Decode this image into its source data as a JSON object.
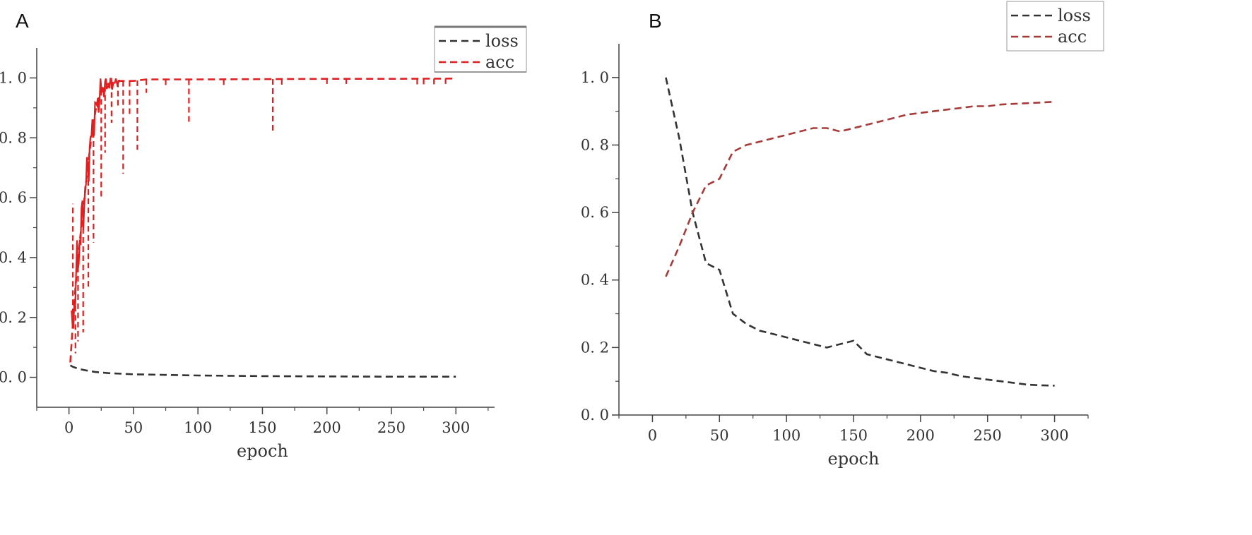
{
  "panels": {
    "a": {
      "label": "A"
    },
    "b": {
      "label": "B"
    }
  },
  "chart_data": [
    {
      "type": "line",
      "xlabel": "epoch",
      "ylabel": "",
      "xlim": [
        -25,
        330
      ],
      "ylim": [
        -0.1,
        1.1
      ],
      "xticks": [
        0,
        50,
        100,
        150,
        200,
        250,
        300
      ],
      "yticks": [
        0.0,
        0.2,
        0.4,
        0.6,
        0.8,
        1.0
      ],
      "legend_position": "top-right",
      "series": [
        {
          "name": "loss",
          "color": "#333333",
          "style": "dashed",
          "x": [
            1,
            3,
            5,
            8,
            12,
            20,
            30,
            50,
            100,
            150,
            200,
            250,
            300
          ],
          "values": [
            0.04,
            0.035,
            0.032,
            0.028,
            0.024,
            0.018,
            0.014,
            0.01,
            0.006,
            0.004,
            0.003,
            0.002,
            0.002
          ]
        },
        {
          "name": "acc",
          "color": "#e02020",
          "style": "dashed",
          "x": [
            1,
            3,
            5,
            7,
            9,
            11,
            13,
            15,
            17,
            19,
            21,
            23,
            25,
            27,
            30,
            35,
            40,
            45,
            50,
            60,
            80,
            100,
            150,
            200,
            250,
            300
          ],
          "values": [
            0.05,
            0.18,
            0.3,
            0.4,
            0.48,
            0.56,
            0.64,
            0.72,
            0.79,
            0.85,
            0.9,
            0.93,
            0.96,
            0.97,
            0.98,
            0.985,
            0.99,
            0.99,
            0.99,
            0.995,
            0.995,
            0.995,
            0.996,
            0.997,
            0.997,
            0.998
          ],
          "dips": [
            {
              "x": 3,
              "y": 0.58
            },
            {
              "x": 5,
              "y": 0.08
            },
            {
              "x": 7,
              "y": 0.12
            },
            {
              "x": 11,
              "y": 0.15
            },
            {
              "x": 15,
              "y": 0.3
            },
            {
              "x": 19,
              "y": 0.45
            },
            {
              "x": 25,
              "y": 0.6
            },
            {
              "x": 28,
              "y": 0.75
            },
            {
              "x": 33,
              "y": 0.85
            },
            {
              "x": 38,
              "y": 0.9
            },
            {
              "x": 42,
              "y": 0.68
            },
            {
              "x": 47,
              "y": 0.88
            },
            {
              "x": 53,
              "y": 0.76
            },
            {
              "x": 60,
              "y": 0.95
            },
            {
              "x": 75,
              "y": 0.97
            },
            {
              "x": 93,
              "y": 0.85
            },
            {
              "x": 120,
              "y": 0.97
            },
            {
              "x": 158,
              "y": 0.82
            },
            {
              "x": 165,
              "y": 0.97
            },
            {
              "x": 200,
              "y": 0.98
            },
            {
              "x": 215,
              "y": 0.98
            },
            {
              "x": 270,
              "y": 0.97
            },
            {
              "x": 275,
              "y": 0.97
            },
            {
              "x": 283,
              "y": 0.97
            },
            {
              "x": 292,
              "y": 0.98
            }
          ]
        }
      ]
    },
    {
      "type": "line",
      "xlabel": "epoch",
      "ylabel": "",
      "xlim": [
        -25,
        325
      ],
      "ylim": [
        0.0,
        1.1
      ],
      "xticks": [
        0,
        50,
        100,
        150,
        200,
        250,
        300
      ],
      "yticks": [
        0.0,
        0.2,
        0.4,
        0.6,
        0.8,
        1.0
      ],
      "legend_position": "top-right",
      "series": [
        {
          "name": "loss",
          "color": "#333333",
          "style": "dashed",
          "x": [
            10,
            20,
            30,
            40,
            50,
            60,
            70,
            80,
            90,
            100,
            110,
            120,
            130,
            140,
            150,
            160,
            170,
            180,
            190,
            200,
            210,
            220,
            230,
            240,
            250,
            260,
            270,
            280,
            290,
            300
          ],
          "values": [
            1.0,
            0.82,
            0.6,
            0.45,
            0.43,
            0.3,
            0.27,
            0.25,
            0.24,
            0.23,
            0.22,
            0.21,
            0.2,
            0.21,
            0.22,
            0.18,
            0.17,
            0.16,
            0.15,
            0.14,
            0.13,
            0.125,
            0.115,
            0.11,
            0.105,
            0.1,
            0.095,
            0.09,
            0.088,
            0.087
          ]
        },
        {
          "name": "acc",
          "color": "#a83a3a",
          "style": "dashed",
          "x": [
            10,
            20,
            30,
            40,
            50,
            60,
            70,
            80,
            90,
            100,
            110,
            120,
            130,
            140,
            150,
            160,
            170,
            180,
            190,
            200,
            210,
            220,
            230,
            240,
            250,
            260,
            270,
            280,
            290,
            300
          ],
          "values": [
            0.41,
            0.5,
            0.6,
            0.68,
            0.7,
            0.78,
            0.8,
            0.81,
            0.82,
            0.83,
            0.84,
            0.85,
            0.85,
            0.84,
            0.85,
            0.86,
            0.87,
            0.88,
            0.89,
            0.895,
            0.9,
            0.905,
            0.91,
            0.915,
            0.915,
            0.92,
            0.922,
            0.924,
            0.926,
            0.928
          ]
        }
      ]
    }
  ]
}
